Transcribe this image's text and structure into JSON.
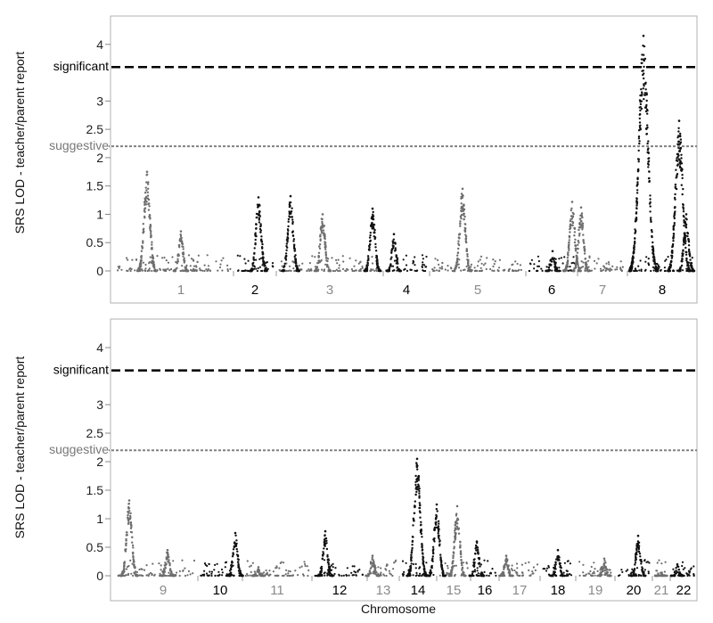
{
  "chart_data": [
    {
      "type": "scatter",
      "panel": "top",
      "title": "",
      "ylabel": "SRS LOD - teacher/parent report",
      "xlabel": "",
      "ylim": [
        0,
        4.5
      ],
      "yticks": [
        0,
        0.5,
        1,
        1.5,
        2,
        2.5,
        3,
        4
      ],
      "ytick_labels": [
        "0",
        "0.5",
        "1",
        "1.5",
        "2",
        "2.5",
        "3",
        "4"
      ],
      "thresholds": [
        {
          "label": "significant",
          "value": 3.6,
          "style": "dashed",
          "color": "#000000"
        },
        {
          "label": "suggestive",
          "value": 2.2,
          "style": "dotted",
          "color": "#808080"
        }
      ],
      "chromosomes": [
        {
          "label": "1",
          "color": "#6e6e6e"
        },
        {
          "label": "2",
          "color": "#111111"
        },
        {
          "label": "3",
          "color": "#6e6e6e"
        },
        {
          "label": "4",
          "color": "#111111"
        },
        {
          "label": "5",
          "color": "#6e6e6e"
        },
        {
          "label": "6",
          "color": "#111111"
        },
        {
          "label": "7",
          "color": "#6e6e6e"
        },
        {
          "label": "8",
          "color": "#111111"
        }
      ],
      "peaks": [
        {
          "chrom": "1",
          "lod": 1.75
        },
        {
          "chrom": "1",
          "lod": 0.7
        },
        {
          "chrom": "2",
          "lod": 1.3
        },
        {
          "chrom": "2",
          "lod": 1.32
        },
        {
          "chrom": "3",
          "lod": 1.0
        },
        {
          "chrom": "4",
          "lod": 1.1
        },
        {
          "chrom": "4",
          "lod": 0.65
        },
        {
          "chrom": "5",
          "lod": 1.45
        },
        {
          "chrom": "6",
          "lod": 0.35
        },
        {
          "chrom": "7",
          "lod": 1.22
        },
        {
          "chrom": "7",
          "lod": 1.12
        },
        {
          "chrom": "8",
          "lod": 4.15
        },
        {
          "chrom": "8",
          "lod": 2.65
        },
        {
          "chrom": "8",
          "lod": 1.0
        }
      ]
    },
    {
      "type": "scatter",
      "panel": "bottom",
      "title": "",
      "ylabel": "SRS LOD - teacher/parent report",
      "xlabel": "Chromosome",
      "ylim": [
        0,
        4.5
      ],
      "yticks": [
        0,
        0.5,
        1,
        1.5,
        2,
        2.5,
        3,
        4
      ],
      "ytick_labels": [
        "0",
        "0.5",
        "1",
        "1.5",
        "2",
        "2.5",
        "3",
        "4"
      ],
      "thresholds": [
        {
          "label": "significant",
          "value": 3.6,
          "style": "dashed",
          "color": "#000000"
        },
        {
          "label": "suggestive",
          "value": 2.2,
          "style": "dotted",
          "color": "#808080"
        }
      ],
      "chromosomes": [
        {
          "label": "9",
          "color": "#6e6e6e"
        },
        {
          "label": "10",
          "color": "#111111"
        },
        {
          "label": "11",
          "color": "#6e6e6e"
        },
        {
          "label": "12",
          "color": "#111111"
        },
        {
          "label": "13",
          "color": "#6e6e6e"
        },
        {
          "label": "14",
          "color": "#111111"
        },
        {
          "label": "15",
          "color": "#6e6e6e"
        },
        {
          "label": "16",
          "color": "#111111"
        },
        {
          "label": "17",
          "color": "#6e6e6e"
        },
        {
          "label": "18",
          "color": "#111111"
        },
        {
          "label": "19",
          "color": "#6e6e6e"
        },
        {
          "label": "20",
          "color": "#111111"
        },
        {
          "label": "21",
          "color": "#6e6e6e"
        },
        {
          "label": "22",
          "color": "#111111"
        }
      ],
      "peaks": [
        {
          "chrom": "9",
          "lod": 1.32
        },
        {
          "chrom": "9",
          "lod": 0.45
        },
        {
          "chrom": "10",
          "lod": 0.75
        },
        {
          "chrom": "11",
          "lod": 0.15
        },
        {
          "chrom": "12",
          "lod": 0.78
        },
        {
          "chrom": "13",
          "lod": 0.35
        },
        {
          "chrom": "14",
          "lod": 2.05
        },
        {
          "chrom": "14",
          "lod": 1.25
        },
        {
          "chrom": "15",
          "lod": 1.22
        },
        {
          "chrom": "16",
          "lod": 0.6
        },
        {
          "chrom": "17",
          "lod": 0.35
        },
        {
          "chrom": "18",
          "lod": 0.45
        },
        {
          "chrom": "19",
          "lod": 0.3
        },
        {
          "chrom": "20",
          "lod": 0.7
        },
        {
          "chrom": "21",
          "lod": 0.05
        },
        {
          "chrom": "22",
          "lod": 0.2
        }
      ]
    }
  ]
}
